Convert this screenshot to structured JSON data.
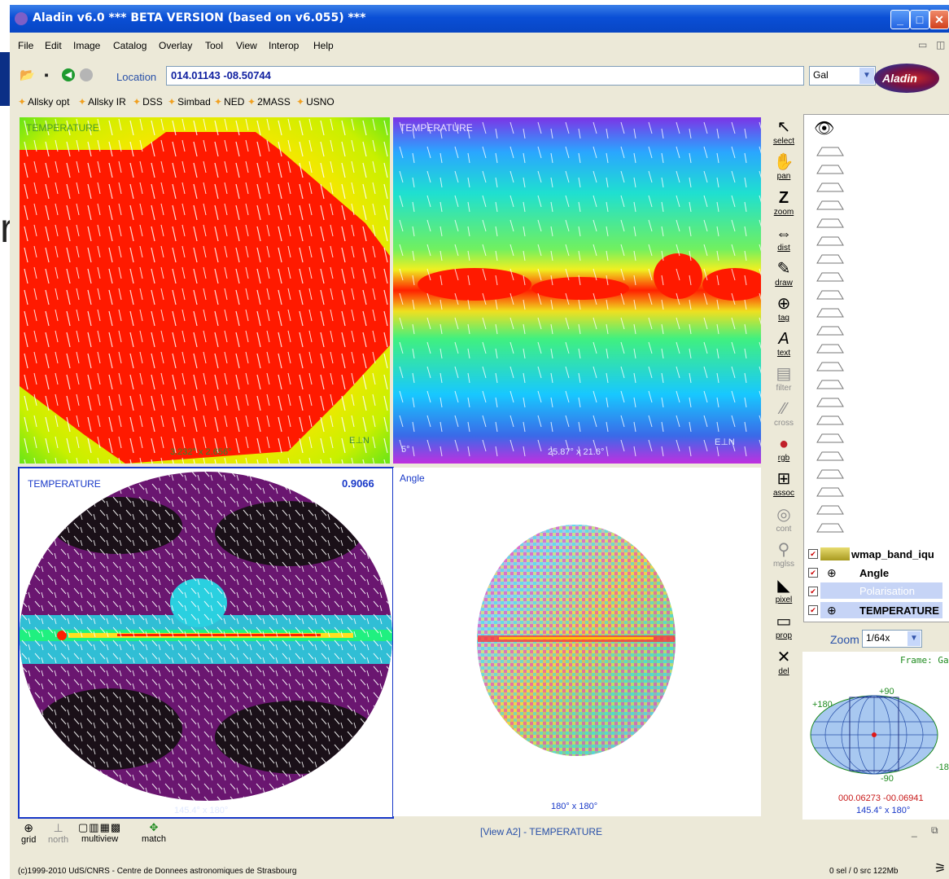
{
  "window": {
    "title": "Aladin v6.0    *** BETA VERSION (based on v6.055) ***"
  },
  "menu": [
    "File",
    "Edit",
    "Image",
    "Catalog",
    "Overlay",
    "Tool",
    "View",
    "Interop",
    "Help"
  ],
  "location": {
    "label": "Location",
    "value": "014.01143 -08.50744"
  },
  "frame_select": {
    "value": "Gal"
  },
  "servers": [
    "Allsky opt",
    "Allsky IR",
    "DSS",
    "Simbad",
    "NED",
    "2MASS",
    "USNO"
  ],
  "views": {
    "v1": {
      "label": "TEMPERATURE",
      "size": "3.232° x 2.656°"
    },
    "v2": {
      "label": "TEMPERATURE",
      "size": "25.87° x 21.6°",
      "scale": "5°"
    },
    "v3": {
      "label": "TEMPERATURE",
      "value": "0.9066",
      "size": "145.4° x 180°"
    },
    "v4": {
      "label": "Angle",
      "size": "180° x 180°"
    }
  },
  "tools": [
    "select",
    "pan",
    "zoom",
    "dist",
    "draw",
    "tag",
    "text",
    "filter",
    "cross",
    "rgb",
    "assoc",
    "cont",
    "mglss",
    "pixel",
    "prop",
    "del"
  ],
  "planes": [
    "wmap_band_iqu",
    "Angle",
    "Polarisation",
    "TEMPERATURE"
  ],
  "zoom": {
    "label": "Zoom",
    "value": "1/64x"
  },
  "navigator": {
    "frame_label": "Frame: Gal",
    "lat_top": "+90",
    "lat_bottom": "-90",
    "lon_left": "+180",
    "lon_right": "-180",
    "coords": "000.06273 -00.06941",
    "size": "145.4° x 180°"
  },
  "bottom_tools": [
    "grid",
    "north",
    "multiview",
    "match"
  ],
  "status": {
    "view": "[View A2] - TEMPERATURE"
  },
  "footer": {
    "copyright": "(c)1999-2010 UdS/CNRS - Centre de Donnees astronomiques de Strasbourg",
    "stats": "0 sel / 0 src    122Mb"
  },
  "colors": {
    "title_bar": "#0a4fd6",
    "accent_blue": "#2850a8",
    "panel_bg": "#ece9d8",
    "selected_view_border": "#1838c8"
  }
}
